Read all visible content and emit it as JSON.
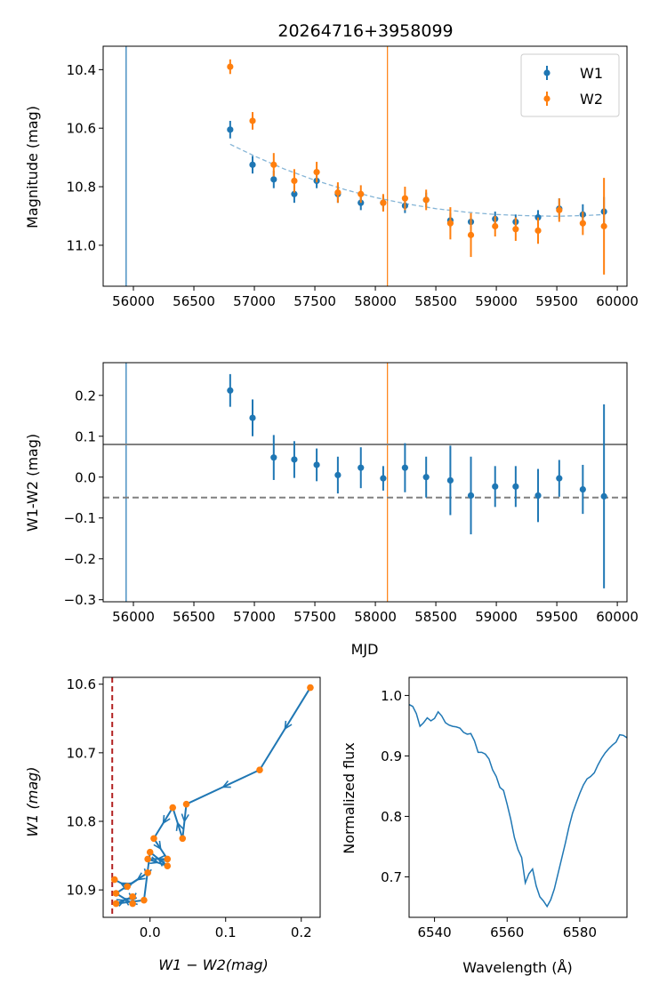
{
  "colors": {
    "w1": "#1f77b4",
    "w2": "#ff7f0e",
    "hline": "#808080",
    "dashed_red": "#b22222",
    "fit": "#1f77b4"
  },
  "chart_data": [
    {
      "type": "scatter",
      "title": "20264716+3958099",
      "xlabel": "",
      "ylabel": "Magnitude (mag)",
      "xlim": [
        55750,
        60080
      ],
      "ylim": [
        11.14,
        10.32
      ],
      "y_inverted": true,
      "xticks": [
        56000,
        56500,
        57000,
        57500,
        58000,
        58500,
        59000,
        59500,
        60000
      ],
      "yticks": [
        10.4,
        10.6,
        10.8,
        11.0
      ],
      "ytick_labels": [
        "10.4",
        "10.6",
        "10.8",
        "11.0"
      ],
      "vlines": [
        {
          "x": 55940,
          "color": "w1"
        },
        {
          "x": 58100,
          "color": "w2"
        }
      ],
      "legend": {
        "placement": "top-right",
        "entries": [
          "W1",
          "W2"
        ]
      },
      "fit_curve": {
        "x": [
          56800,
          57000,
          57250,
          57500,
          57750,
          58000,
          58250,
          58500,
          58750,
          59000,
          59250,
          59500,
          59750,
          59900
        ],
        "y": [
          10.655,
          10.695,
          10.74,
          10.778,
          10.81,
          10.837,
          10.858,
          10.875,
          10.887,
          10.895,
          10.899,
          10.901,
          10.898,
          10.895
        ]
      },
      "series": [
        {
          "name": "W1",
          "color": "w1",
          "x": [
            56800,
            56985,
            57160,
            57330,
            57515,
            57690,
            57880,
            58065,
            58245,
            58420,
            58620,
            58790,
            58990,
            59160,
            59345,
            59520,
            59715,
            59890
          ],
          "y": [
            10.605,
            10.725,
            10.775,
            10.825,
            10.78,
            10.825,
            10.855,
            10.855,
            10.865,
            10.845,
            10.915,
            10.92,
            10.91,
            10.92,
            10.905,
            10.875,
            10.895,
            10.885
          ],
          "err": [
            0.03,
            0.03,
            0.03,
            0.03,
            0.025,
            0.03,
            0.025,
            0.025,
            0.025,
            0.025,
            0.025,
            0.025,
            0.025,
            0.025,
            0.025,
            0.035,
            0.035,
            0.05
          ]
        },
        {
          "name": "W2",
          "color": "w2",
          "x": [
            56800,
            56985,
            57160,
            57330,
            57515,
            57690,
            57880,
            58065,
            58245,
            58420,
            58620,
            58790,
            58990,
            59160,
            59345,
            59520,
            59715,
            59890
          ],
          "y": [
            10.39,
            10.575,
            10.725,
            10.78,
            10.75,
            10.82,
            10.825,
            10.855,
            10.84,
            10.845,
            10.925,
            10.965,
            10.935,
            10.945,
            10.95,
            10.88,
            10.925,
            10.935
          ],
          "err": [
            0.025,
            0.03,
            0.04,
            0.04,
            0.035,
            0.035,
            0.03,
            0.03,
            0.04,
            0.035,
            0.055,
            0.075,
            0.035,
            0.04,
            0.045,
            0.04,
            0.04,
            0.165
          ]
        }
      ]
    },
    {
      "type": "scatter",
      "xlabel": "MJD",
      "ylabel": "W1-W2 (mag)",
      "xlim": [
        55750,
        60080
      ],
      "ylim": [
        -0.305,
        0.28
      ],
      "xticks": [
        56000,
        56500,
        57000,
        57500,
        58000,
        58500,
        59000,
        59500,
        60000
      ],
      "yticks": [
        -0.3,
        -0.2,
        -0.1,
        0.0,
        0.1,
        0.2
      ],
      "ytick_labels": [
        "−0.3",
        "−0.2",
        "−0.1",
        "0.0",
        "0.1",
        "0.2"
      ],
      "vlines": [
        {
          "x": 55940,
          "color": "w1"
        },
        {
          "x": 58100,
          "color": "w2"
        }
      ],
      "hlines": [
        {
          "y": 0.08,
          "style": "solid"
        },
        {
          "y": -0.05,
          "style": "dashed"
        }
      ],
      "series": [
        {
          "color": "w1",
          "x": [
            56800,
            56985,
            57160,
            57330,
            57515,
            57690,
            57880,
            58065,
            58245,
            58420,
            58620,
            58790,
            58990,
            59160,
            59345,
            59520,
            59715,
            59890
          ],
          "y": [
            0.212,
            0.145,
            0.048,
            0.043,
            0.03,
            0.005,
            0.023,
            -0.003,
            0.023,
            0.0,
            -0.008,
            -0.045,
            -0.023,
            -0.023,
            -0.045,
            -0.003,
            -0.03,
            -0.047
          ],
          "err": [
            0.04,
            0.045,
            0.055,
            0.045,
            0.04,
            0.045,
            0.05,
            0.03,
            0.06,
            0.05,
            0.085,
            0.095,
            0.05,
            0.05,
            0.065,
            0.045,
            0.06,
            0.225
          ]
        }
      ]
    },
    {
      "type": "line",
      "xlabel": "W1 − W2(mag)",
      "ylabel": "W1 (mag)",
      "xlim": [
        -0.062,
        0.225
      ],
      "ylim": [
        10.94,
        10.59
      ],
      "y_inverted": true,
      "xticks": [
        0.0,
        0.1,
        0.2
      ],
      "xtick_labels": [
        "0.0",
        "0.1",
        "0.2"
      ],
      "yticks": [
        10.6,
        10.7,
        10.8,
        10.9
      ],
      "ytick_labels": [
        "10.6",
        "10.7",
        "10.8",
        "10.9"
      ],
      "vlines": [
        {
          "x": -0.05,
          "style": "dashed",
          "color": "dashed_red"
        }
      ],
      "x": [
        0.212,
        0.145,
        0.048,
        0.043,
        0.03,
        0.005,
        0.023,
        -0.003,
        0.023,
        0.0,
        -0.008,
        -0.045,
        -0.023,
        -0.023,
        -0.045,
        -0.003,
        -0.03,
        -0.047
      ],
      "y": [
        10.605,
        10.725,
        10.775,
        10.825,
        10.78,
        10.825,
        10.855,
        10.855,
        10.865,
        10.845,
        10.915,
        10.92,
        10.91,
        10.92,
        10.905,
        10.875,
        10.895,
        10.885
      ]
    },
    {
      "type": "line",
      "xlabel": "Wavelength (Å)",
      "ylabel": "Normalized flux",
      "xlim": [
        6533,
        6593
      ],
      "ylim": [
        0.633,
        1.03
      ],
      "xticks": [
        6540,
        6560,
        6580
      ],
      "xtick_labels": [
        "6540",
        "6560",
        "6580"
      ],
      "yticks": [
        0.7,
        0.8,
        0.9,
        1.0
      ],
      "ytick_labels": [
        "0.7",
        "0.8",
        "0.9",
        "1.0"
      ],
      "x": [
        6533,
        6534,
        6535,
        6536,
        6537,
        6538,
        6539,
        6540,
        6541,
        6542,
        6543,
        6544,
        6545,
        6546,
        6547,
        6548,
        6549,
        6550,
        6551,
        6552,
        6553,
        6554,
        6555,
        6556,
        6557,
        6558,
        6559,
        6560,
        6561,
        6562,
        6563,
        6564,
        6565,
        6566,
        6567,
        6568,
        6569,
        6570,
        6571,
        6572,
        6573,
        6574,
        6575,
        6576,
        6577,
        6578,
        6579,
        6580,
        6581,
        6582,
        6583,
        6584,
        6585,
        6586,
        6587,
        6588,
        6589,
        6590,
        6591,
        6592,
        6593
      ],
      "y": [
        0.985,
        0.982,
        0.97,
        0.949,
        0.955,
        0.963,
        0.958,
        0.962,
        0.973,
        0.966,
        0.955,
        0.951,
        0.949,
        0.948,
        0.946,
        0.939,
        0.936,
        0.937,
        0.925,
        0.906,
        0.906,
        0.903,
        0.895,
        0.877,
        0.866,
        0.848,
        0.843,
        0.82,
        0.795,
        0.765,
        0.745,
        0.732,
        0.69,
        0.705,
        0.713,
        0.685,
        0.667,
        0.66,
        0.651,
        0.662,
        0.68,
        0.705,
        0.73,
        0.755,
        0.782,
        0.805,
        0.822,
        0.838,
        0.852,
        0.862,
        0.866,
        0.872,
        0.885,
        0.896,
        0.905,
        0.912,
        0.918,
        0.923,
        0.935,
        0.934,
        0.93
      ]
    }
  ]
}
